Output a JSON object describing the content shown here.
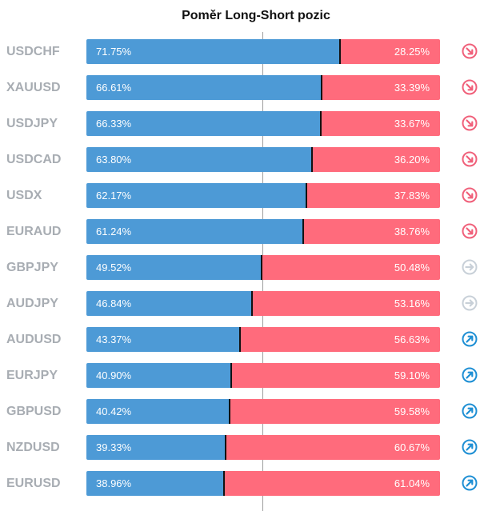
{
  "chart_data": {
    "type": "bar",
    "title": "Poměr Long-Short pozic",
    "categories": [
      "USDCHF",
      "XAUUSD",
      "USDJPY",
      "USDCAD",
      "USDX",
      "EURAUD",
      "GBPJPY",
      "AUDJPY",
      "AUDUSD",
      "EURJPY",
      "GBPUSD",
      "NZDUSD",
      "EURUSD"
    ],
    "series": [
      {
        "values": [
          71.75,
          66.61,
          66.33,
          63.8,
          62.17,
          61.24,
          49.52,
          46.84,
          43.37,
          40.9,
          40.42,
          39.33,
          38.96
        ]
      },
      {
        "values": [
          28.25,
          33.39,
          33.67,
          36.2,
          37.83,
          38.76,
          50.48,
          53.16,
          56.63,
          59.1,
          59.58,
          60.67,
          61.04
        ]
      }
    ],
    "long_labels": [
      "71.75%",
      "66.61%",
      "66.33%",
      "63.80%",
      "62.17%",
      "61.24%",
      "49.52%",
      "46.84%",
      "43.37%",
      "40.90%",
      "40.42%",
      "39.33%",
      "38.96%"
    ],
    "short_labels": [
      "28.25%",
      "33.39%",
      "33.67%",
      "36.20%",
      "37.83%",
      "38.76%",
      "50.48%",
      "53.16%",
      "56.63%",
      "59.10%",
      "59.58%",
      "60.67%",
      "61.04%"
    ],
    "trend": [
      "down",
      "down",
      "down",
      "down",
      "down",
      "down",
      "neutral",
      "neutral",
      "up",
      "up",
      "up",
      "up",
      "up"
    ],
    "ylim": [
      0,
      100
    ]
  },
  "colors": {
    "long": "#4d9ad6",
    "short": "#ff6b7c",
    "trend_down": "#f0607a",
    "trend_neutral": "#c8d0d8",
    "trend_up": "#1e8fd4"
  },
  "icons": {
    "down": "arrow-down-right-circle-icon",
    "neutral": "arrow-right-circle-icon",
    "up": "arrow-up-right-circle-icon"
  }
}
